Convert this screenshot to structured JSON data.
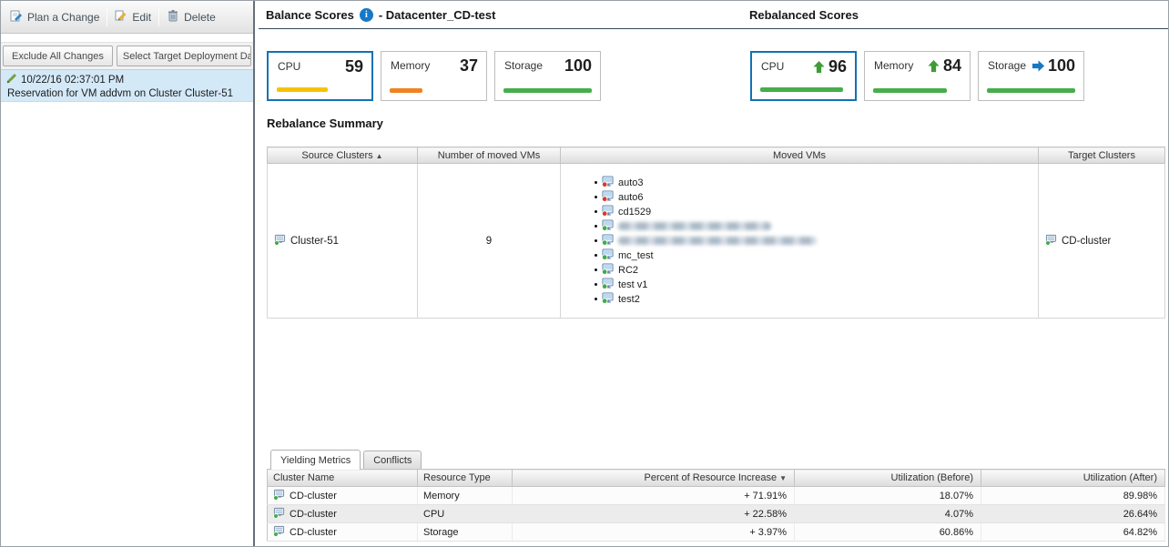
{
  "left_panel": {
    "toolbar": {
      "plan_change": "Plan a Change",
      "edit": "Edit",
      "delete": "Delete"
    },
    "secondary_toolbar": {
      "exclude_all": "Exclude All Changes",
      "select_target": "Select Target Deployment Da"
    },
    "change_item": {
      "timestamp": "10/22/16 02:37:01 PM",
      "description": "Reservation for VM addvm on Cluster Cluster-51",
      "selected": true
    }
  },
  "header": {
    "balance_title": "Balance Scores",
    "datacenter": "- Datacenter_CD-test",
    "rebalanced_title": "Rebalanced Scores"
  },
  "balance_scores": [
    {
      "label": "CPU",
      "value": 59,
      "bar_color": "#f5c400",
      "selected": true
    },
    {
      "label": "Memory",
      "value": 37,
      "bar_color": "#f08220",
      "selected": false
    },
    {
      "label": "Storage",
      "value": 100,
      "bar_color": "#46ae4a",
      "selected": false
    }
  ],
  "rebalanced_scores": [
    {
      "label": "CPU",
      "value": 96,
      "bar_color": "#46ae4a",
      "trend": "up",
      "trend_color": "#3f9c35",
      "selected": true
    },
    {
      "label": "Memory",
      "value": 84,
      "bar_color": "#46ae4a",
      "trend": "up",
      "trend_color": "#3f9c35",
      "selected": false
    },
    {
      "label": "Storage",
      "value": 100,
      "bar_color": "#46ae4a",
      "trend": "right",
      "trend_color": "#1778c2",
      "selected": false
    }
  ],
  "summary": {
    "title": "Rebalance Summary",
    "columns": [
      {
        "label": "Source Clusters",
        "sort_glyph": "▲"
      },
      {
        "label": "Number of moved VMs"
      },
      {
        "label": "Moved VMs"
      },
      {
        "label": "Target Clusters"
      }
    ],
    "row": {
      "source_cluster": "Cluster-51",
      "moved_count": "9",
      "target_cluster": "CD-cluster",
      "moved_vms": [
        {
          "name": "auto3",
          "state": "off"
        },
        {
          "name": "auto6",
          "state": "off"
        },
        {
          "name": "cd1529",
          "state": "off"
        },
        {
          "name": "",
          "state": "on",
          "redacted": true,
          "redacted_width": 168
        },
        {
          "name": "",
          "state": "on",
          "redacted": true,
          "redacted_width": 218
        },
        {
          "name": "mc_test",
          "state": "on"
        },
        {
          "name": "RC2",
          "state": "on"
        },
        {
          "name": "test v1",
          "state": "on"
        },
        {
          "name": "test2",
          "state": "on"
        }
      ]
    }
  },
  "tabs": [
    {
      "label": "Yielding Metrics",
      "active": true
    },
    {
      "label": "Conflicts",
      "active": false
    }
  ],
  "metrics": {
    "columns": [
      {
        "label": "Cluster Name"
      },
      {
        "label": "Resource Type"
      },
      {
        "label": "Percent of Resource Increase",
        "sort_glyph": "▼"
      },
      {
        "label": "Utilization (Before)"
      },
      {
        "label": "Utilization (After)"
      }
    ],
    "rows": [
      {
        "cluster": "CD-cluster",
        "resource": "Memory",
        "increase": "+ 71.91%",
        "before": "18.07%",
        "after": "89.98%"
      },
      {
        "cluster": "CD-cluster",
        "resource": "CPU",
        "increase": "+ 22.58%",
        "before": "4.07%",
        "after": "26.64%"
      },
      {
        "cluster": "CD-cluster",
        "resource": "Storage",
        "increase": "+ 3.97%",
        "before": "60.86%",
        "after": "64.82%"
      }
    ]
  },
  "colors": {
    "selected_card_border": "#1271b5",
    "selected_item_bg": "#d4e9f8",
    "header_underline": "#35495c",
    "vm_on_badge": "#3fae49",
    "vm_off_badge": "#d93a2b"
  }
}
